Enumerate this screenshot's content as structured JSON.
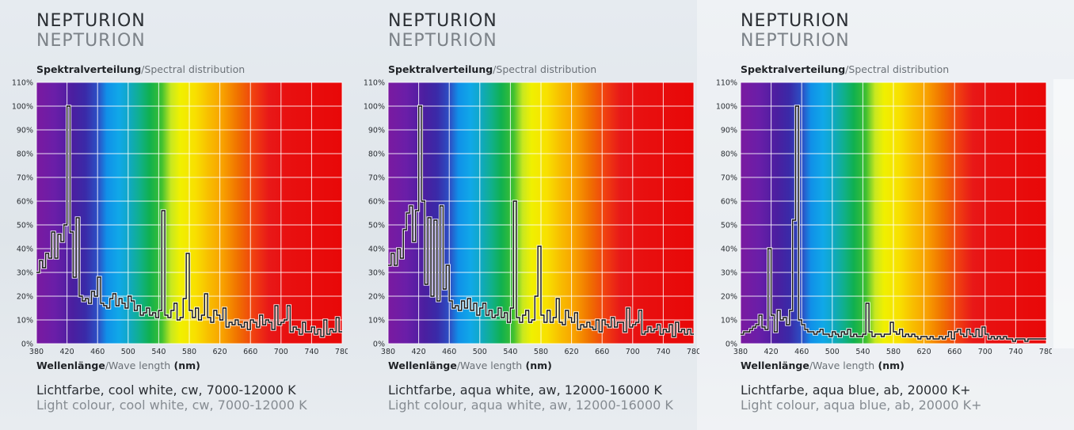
{
  "common": {
    "subtitle_de": "Spektralverteilung",
    "subtitle_en": "/Spectral distribution",
    "xlabel_de": "Wellenlänge",
    "xlabel_en": "/Wave length",
    "xlabel_unit": " (nm)"
  },
  "chart_data": [
    {
      "type": "line",
      "title": "NEPTURION",
      "subtitle": "NEPTURION",
      "xlabel": "Wellenlänge/Wave length (nm)",
      "ylabel": "",
      "xlim": [
        380,
        780
      ],
      "ylim": [
        0,
        110
      ],
      "x_ticks": [
        "380",
        "420",
        "460",
        "500",
        "540",
        "580",
        "620",
        "660",
        "700",
        "740",
        "780"
      ],
      "y_ticks": [
        "0%",
        "10%",
        "20%",
        "30%",
        "40%",
        "50%",
        "60%",
        "70%",
        "80%",
        "90%",
        "100%",
        "110%"
      ],
      "grid": true,
      "caption_de": "Lichtfarbe, cool white, cw, 7000-12000 K",
      "caption_en": "Light colour, cool white, cw, 7000-12000 K",
      "series": [
        {
          "x": [
            380,
            384,
            388,
            392,
            396,
            400,
            404,
            408,
            412,
            416,
            420,
            424,
            428,
            432,
            436,
            440,
            444,
            448,
            452,
            456,
            460,
            464,
            468,
            472,
            476,
            480,
            484,
            488,
            492,
            496,
            500,
            504,
            508,
            512,
            516,
            520,
            524,
            528,
            532,
            536,
            540,
            544,
            548,
            552,
            556,
            560,
            564,
            568,
            572,
            576,
            580,
            584,
            588,
            592,
            596,
            600,
            604,
            608,
            612,
            616,
            620,
            624,
            628,
            632,
            636,
            640,
            644,
            648,
            652,
            656,
            660,
            664,
            668,
            672,
            676,
            680,
            684,
            688,
            692,
            696,
            700,
            704,
            708,
            712,
            716,
            720,
            724,
            728,
            732,
            736,
            740,
            744,
            748,
            752,
            756,
            760,
            764,
            768,
            772,
            776,
            780
          ],
          "y": [
            30,
            35,
            32,
            38,
            36,
            47,
            36,
            46,
            43,
            50,
            100,
            47,
            28,
            53,
            20,
            18,
            19,
            17,
            22,
            20,
            28,
            17,
            16,
            15,
            19,
            21,
            16,
            19,
            17,
            15,
            20,
            18,
            14,
            16,
            12,
            13,
            15,
            12,
            13,
            11,
            14,
            56,
            12,
            11,
            14,
            17,
            10,
            11,
            19,
            38,
            14,
            11,
            15,
            10,
            12,
            21,
            11,
            9,
            14,
            12,
            10,
            15,
            7,
            9,
            8,
            10,
            8,
            7,
            9,
            6,
            10,
            9,
            7,
            12,
            8,
            10,
            9,
            6,
            16,
            8,
            9,
            10,
            16,
            5,
            7,
            6,
            4,
            9,
            5,
            5,
            7,
            4,
            6,
            3,
            10,
            4,
            6,
            5,
            11,
            5,
            5
          ]
        }
      ]
    },
    {
      "type": "line",
      "title": "NEPTURION",
      "subtitle": "NEPTURION",
      "xlabel": "Wellenlänge/Wave length (nm)",
      "ylabel": "",
      "xlim": [
        380,
        780
      ],
      "ylim": [
        0,
        110
      ],
      "x_ticks": [
        "380",
        "420",
        "460",
        "500",
        "540",
        "580",
        "620",
        "660",
        "700",
        "740",
        "780"
      ],
      "y_ticks": [
        "0%",
        "10%",
        "20%",
        "30%",
        "40%",
        "50%",
        "60%",
        "70%",
        "80%",
        "90%",
        "100%",
        "110%"
      ],
      "grid": true,
      "caption_de": "Lichtfarbe, aqua white, aw, 12000-16000 K",
      "caption_en": "Light colour, aqua white, aw, 12000-16000 K",
      "series": [
        {
          "x": [
            380,
            384,
            388,
            392,
            396,
            400,
            404,
            408,
            412,
            416,
            420,
            424,
            428,
            432,
            436,
            440,
            444,
            448,
            452,
            456,
            460,
            464,
            468,
            472,
            476,
            480,
            484,
            488,
            492,
            496,
            500,
            504,
            508,
            512,
            516,
            520,
            524,
            528,
            532,
            536,
            540,
            544,
            548,
            552,
            556,
            560,
            564,
            568,
            572,
            576,
            580,
            584,
            588,
            592,
            596,
            600,
            604,
            608,
            612,
            616,
            620,
            624,
            628,
            632,
            636,
            640,
            644,
            648,
            652,
            656,
            660,
            664,
            668,
            672,
            676,
            680,
            684,
            688,
            692,
            696,
            700,
            704,
            708,
            712,
            716,
            720,
            724,
            728,
            732,
            736,
            740,
            744,
            748,
            752,
            756,
            760,
            764,
            768,
            772,
            776,
            780
          ],
          "y": [
            33,
            38,
            33,
            40,
            36,
            48,
            55,
            58,
            43,
            56,
            100,
            60,
            25,
            53,
            20,
            52,
            18,
            58,
            23,
            33,
            18,
            15,
            16,
            14,
            18,
            15,
            19,
            14,
            17,
            12,
            15,
            17,
            12,
            14,
            11,
            12,
            15,
            11,
            13,
            9,
            15,
            60,
            11,
            9,
            12,
            14,
            9,
            10,
            20,
            41,
            12,
            9,
            14,
            9,
            11,
            19,
            9,
            8,
            14,
            11,
            9,
            13,
            6,
            8,
            7,
            9,
            7,
            6,
            10,
            5,
            10,
            8,
            7,
            11,
            7,
            9,
            9,
            5,
            15,
            7,
            8,
            9,
            14,
            4,
            5,
            7,
            5,
            6,
            8,
            4,
            6,
            5,
            8,
            3,
            9,
            5,
            6,
            4,
            6,
            4,
            4
          ]
        }
      ]
    },
    {
      "type": "line",
      "title": "NEPTURION",
      "subtitle": "NEPTURION",
      "xlabel": "Wellenlänge/Wave length (nm)",
      "ylabel": "",
      "xlim": [
        380,
        780
      ],
      "ylim": [
        0,
        110
      ],
      "x_ticks": [
        "380",
        "420",
        "460",
        "500",
        "540",
        "580",
        "620",
        "660",
        "700",
        "740",
        "780"
      ],
      "y_ticks": [
        "0%",
        "10%",
        "20%",
        "30%",
        "40%",
        "50%",
        "60%",
        "70%",
        "80%",
        "90%",
        "100%",
        "110%"
      ],
      "grid": true,
      "caption_de": "Lichtfarbe, aqua blue, ab, 20000 K+",
      "caption_en": "Light colour, aqua blue, ab, 20000 K+",
      "series": [
        {
          "x": [
            380,
            384,
            388,
            392,
            396,
            400,
            404,
            408,
            412,
            416,
            420,
            424,
            428,
            432,
            436,
            440,
            444,
            448,
            452,
            456,
            460,
            464,
            468,
            472,
            476,
            480,
            484,
            488,
            492,
            496,
            500,
            504,
            508,
            512,
            516,
            520,
            524,
            528,
            532,
            536,
            540,
            544,
            548,
            552,
            556,
            560,
            564,
            568,
            572,
            576,
            580,
            584,
            588,
            592,
            596,
            600,
            604,
            608,
            612,
            616,
            620,
            624,
            628,
            632,
            636,
            640,
            644,
            648,
            652,
            656,
            660,
            664,
            668,
            672,
            676,
            680,
            684,
            688,
            692,
            696,
            700,
            704,
            708,
            712,
            716,
            720,
            724,
            728,
            732,
            736,
            740,
            744,
            748,
            752,
            756,
            760,
            764,
            768,
            772,
            776,
            780
          ],
          "y": [
            4,
            5,
            5,
            6,
            7,
            8,
            12,
            7,
            6,
            40,
            12,
            5,
            14,
            10,
            11,
            8,
            14,
            52,
            100,
            10,
            8,
            6,
            5,
            5,
            4,
            5,
            6,
            4,
            4,
            3,
            5,
            4,
            3,
            5,
            4,
            6,
            3,
            4,
            3,
            3,
            4,
            17,
            5,
            3,
            4,
            4,
            3,
            4,
            4,
            9,
            5,
            4,
            6,
            3,
            4,
            3,
            4,
            3,
            2,
            3,
            3,
            2,
            3,
            2,
            2,
            3,
            2,
            3,
            5,
            2,
            5,
            6,
            4,
            3,
            6,
            4,
            3,
            6,
            3,
            7,
            4,
            2,
            3,
            2,
            3,
            2,
            3,
            2,
            2,
            1,
            2,
            2,
            2,
            1,
            2,
            2,
            2,
            2,
            2,
            2,
            2
          ]
        }
      ]
    }
  ]
}
